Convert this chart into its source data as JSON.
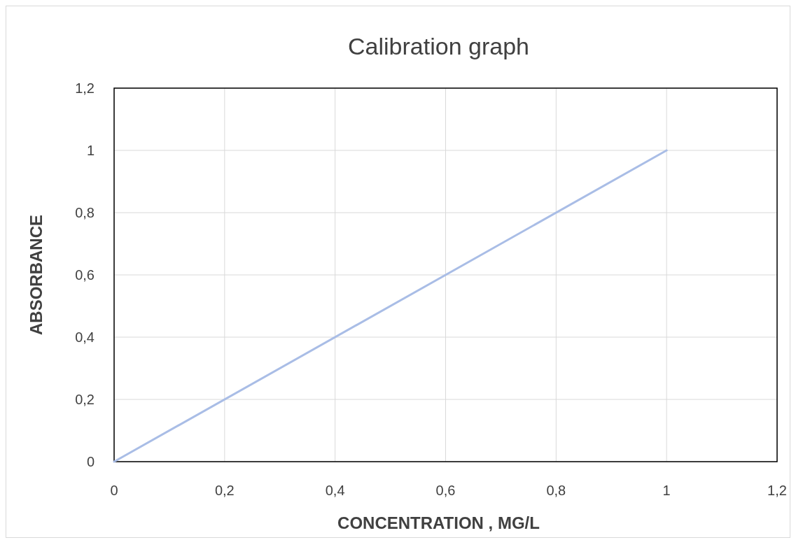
{
  "chart_data": {
    "type": "line",
    "title": "Calibration graph",
    "xlabel": "CONCENTRATION , MG/L",
    "ylabel": "ABSORBANCE",
    "x": [
      0,
      1
    ],
    "series": [
      {
        "color": "#a9bde6",
        "values": [
          0,
          1
        ]
      }
    ],
    "xlim": [
      0,
      1.2
    ],
    "ylim": [
      0,
      1.2
    ],
    "xticks": [
      0,
      {
        "value": 0.2,
        "label": "0,2"
      },
      {
        "value": 0.4,
        "label": "0,4"
      },
      {
        "value": 0.6,
        "label": "0,6"
      },
      {
        "value": 0.8,
        "label": "0,8"
      },
      1,
      {
        "value": 1.2,
        "label": "1,2"
      }
    ],
    "yticks": [
      0,
      {
        "value": 0.2,
        "label": "0,2"
      },
      {
        "value": 0.4,
        "label": "0,4"
      },
      {
        "value": 0.6,
        "label": "0,6"
      },
      {
        "value": 0.8,
        "label": "0,8"
      },
      1,
      {
        "value": 1.2,
        "label": "1,2"
      }
    ],
    "grid": true,
    "marker": "none",
    "line_style": "solid"
  }
}
